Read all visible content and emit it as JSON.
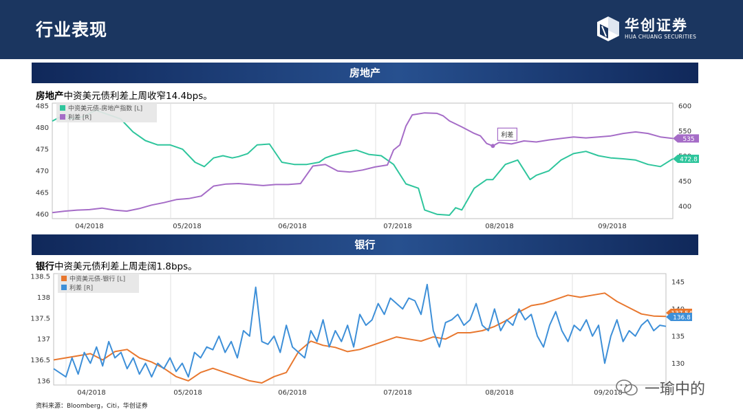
{
  "page": {
    "title": "行业表现"
  },
  "brand": {
    "name_cn": "华创证券",
    "name_en": "HUA CHUANG SECURITIES"
  },
  "sections": [
    {
      "title": "房地产",
      "desc_bold": "房地产",
      "desc_text": "中资美元债利差上周收窄14.4bps。"
    },
    {
      "title": "银行",
      "desc_bold": "银行",
      "desc_text": "中资美元债利差上周走阔1.8bps。"
    }
  ],
  "source": "资料来源：Bloomberg，Citi，华创证券",
  "watermark": "一瑜中的",
  "colors": {
    "header": "#1b3660",
    "green": "#2ec59c",
    "purple": "#a56cc7",
    "orange": "#e8772e",
    "blue": "#3d8fd8"
  },
  "chart_data": [
    {
      "type": "line",
      "title": "房地产",
      "x_labels": [
        "04/2018",
        "05/2018",
        "06/2018",
        "07/2018",
        "08/2018",
        "09/2018"
      ],
      "left_axis": {
        "ticks": [
          460,
          465,
          470,
          475,
          480,
          485
        ],
        "range": [
          459,
          485
        ]
      },
      "right_axis": {
        "ticks": [
          400,
          450,
          500,
          550,
          600
        ],
        "range": [
          375,
          600
        ]
      },
      "annotation": "利差",
      "series": [
        {
          "name": "中资美元债-房地产指数 [L]",
          "axis": "left",
          "color": "#2ec59c",
          "last_label": "472.8",
          "x": [
            0.0,
            0.02,
            0.03,
            0.05,
            0.07,
            0.09,
            0.11,
            0.13,
            0.15,
            0.17,
            0.19,
            0.21,
            0.23,
            0.245,
            0.26,
            0.275,
            0.29,
            0.3,
            0.315,
            0.33,
            0.35,
            0.37,
            0.39,
            0.41,
            0.43,
            0.44,
            0.45,
            0.47,
            0.49,
            0.51,
            0.53,
            0.55,
            0.57,
            0.59,
            0.6,
            0.62,
            0.64,
            0.65,
            0.66,
            0.68,
            0.7,
            0.71,
            0.73,
            0.75,
            0.77,
            0.78,
            0.8,
            0.82,
            0.84,
            0.86,
            0.88,
            0.9,
            0.92,
            0.94,
            0.96,
            0.98,
            1.0
          ],
          "values": [
            481.5,
            483,
            482,
            482.5,
            484,
            483,
            482,
            479,
            477,
            476,
            476,
            475,
            472,
            471,
            473,
            473.5,
            473,
            473.3,
            474,
            476,
            476.2,
            472,
            471.5,
            471.5,
            472,
            473,
            473.5,
            474.3,
            474.8,
            473.8,
            473.5,
            471.5,
            467,
            466,
            461,
            460,
            459.8,
            461.5,
            461,
            466,
            468,
            468,
            471.5,
            472.5,
            468,
            469,
            470,
            472.5,
            474,
            474.5,
            473.5,
            473,
            472.8,
            472.5,
            471.5,
            471,
            472.8
          ]
        },
        {
          "name": "利差 [R]",
          "axis": "right",
          "color": "#a56cc7",
          "last_label": "535",
          "x": [
            0.0,
            0.02,
            0.04,
            0.06,
            0.08,
            0.1,
            0.12,
            0.14,
            0.16,
            0.18,
            0.2,
            0.22,
            0.24,
            0.26,
            0.28,
            0.3,
            0.32,
            0.34,
            0.36,
            0.38,
            0.4,
            0.42,
            0.44,
            0.46,
            0.48,
            0.5,
            0.52,
            0.54,
            0.55,
            0.56,
            0.57,
            0.58,
            0.6,
            0.62,
            0.63,
            0.64,
            0.66,
            0.68,
            0.69,
            0.7,
            0.71,
            0.72,
            0.74,
            0.76,
            0.78,
            0.8,
            0.82,
            0.84,
            0.86,
            0.88,
            0.9,
            0.92,
            0.94,
            0.96,
            0.98,
            1.0
          ],
          "values": [
            387,
            390,
            392,
            393,
            396,
            392,
            390,
            395,
            402,
            407,
            413,
            415,
            420,
            440,
            444,
            445,
            443,
            441,
            443,
            443,
            445,
            480,
            483,
            470,
            468,
            472,
            478,
            482,
            512,
            522,
            560,
            582,
            586,
            585,
            580,
            570,
            558,
            545,
            540,
            525,
            520,
            527,
            524,
            530,
            528,
            532,
            535,
            538,
            536,
            538,
            540,
            545,
            548,
            545,
            538,
            535
          ]
        }
      ]
    },
    {
      "type": "line",
      "title": "银行",
      "x_labels": [
        "04/2018",
        "05/2018",
        "06/2018",
        "07/2018",
        "08/2018",
        "09/2018"
      ],
      "left_axis": {
        "ticks": [
          136,
          136.5,
          137,
          137.5,
          138,
          138.5
        ],
        "range": [
          135.9,
          138.5
        ]
      },
      "right_axis": {
        "ticks": [
          130,
          135,
          140,
          145
        ],
        "range": [
          126,
          146
        ]
      },
      "series": [
        {
          "name": "中资美元债-银行 [L]",
          "axis": "left",
          "color": "#e8772e",
          "last_label": "137.54",
          "x": [
            0.0,
            0.02,
            0.04,
            0.06,
            0.08,
            0.1,
            0.12,
            0.14,
            0.16,
            0.18,
            0.2,
            0.22,
            0.24,
            0.26,
            0.28,
            0.3,
            0.32,
            0.34,
            0.36,
            0.38,
            0.4,
            0.42,
            0.44,
            0.46,
            0.48,
            0.5,
            0.52,
            0.54,
            0.56,
            0.58,
            0.6,
            0.62,
            0.64,
            0.66,
            0.68,
            0.7,
            0.72,
            0.74,
            0.76,
            0.78,
            0.8,
            0.82,
            0.84,
            0.86,
            0.88,
            0.9,
            0.92,
            0.94,
            0.96,
            0.98,
            1.0
          ],
          "values": [
            136.5,
            136.55,
            136.6,
            136.65,
            136.5,
            136.7,
            136.75,
            136.55,
            136.45,
            136.3,
            136.1,
            136.0,
            136.2,
            136.3,
            136.2,
            136.1,
            136.0,
            135.95,
            136.1,
            136.2,
            136.7,
            136.95,
            136.85,
            136.8,
            136.7,
            136.75,
            136.85,
            136.95,
            137.05,
            137.0,
            136.95,
            137.05,
            137.0,
            137.15,
            137.15,
            137.2,
            137.3,
            137.45,
            137.65,
            137.8,
            137.85,
            137.95,
            138.05,
            138.0,
            138.05,
            138.1,
            137.9,
            137.75,
            137.6,
            137.55,
            137.54
          ]
        },
        {
          "name": "利差 [R]",
          "axis": "right",
          "color": "#3d8fd8",
          "last_label": "136.8",
          "x": [
            0.0,
            0.02,
            0.03,
            0.04,
            0.05,
            0.06,
            0.07,
            0.08,
            0.09,
            0.1,
            0.11,
            0.12,
            0.13,
            0.14,
            0.15,
            0.16,
            0.17,
            0.18,
            0.19,
            0.2,
            0.21,
            0.22,
            0.23,
            0.24,
            0.25,
            0.26,
            0.27,
            0.28,
            0.29,
            0.3,
            0.31,
            0.32,
            0.33,
            0.34,
            0.35,
            0.36,
            0.37,
            0.38,
            0.39,
            0.4,
            0.41,
            0.42,
            0.43,
            0.44,
            0.45,
            0.46,
            0.47,
            0.48,
            0.49,
            0.5,
            0.51,
            0.52,
            0.53,
            0.54,
            0.55,
            0.56,
            0.57,
            0.58,
            0.59,
            0.6,
            0.61,
            0.62,
            0.63,
            0.64,
            0.65,
            0.66,
            0.67,
            0.68,
            0.69,
            0.7,
            0.71,
            0.72,
            0.73,
            0.74,
            0.75,
            0.76,
            0.77,
            0.78,
            0.79,
            0.8,
            0.81,
            0.82,
            0.83,
            0.84,
            0.85,
            0.86,
            0.87,
            0.88,
            0.89,
            0.9,
            0.91,
            0.92,
            0.93,
            0.94,
            0.95,
            0.96,
            0.97,
            0.98,
            0.99,
            1.0
          ],
          "values": [
            129,
            127.5,
            131,
            128,
            132,
            130,
            133,
            129.5,
            134,
            131,
            132,
            129,
            131,
            128,
            130,
            127.5,
            130,
            129,
            131,
            128.5,
            130,
            127.5,
            132,
            131,
            133,
            132.5,
            135,
            132,
            134,
            131,
            136,
            135,
            144,
            134,
            133.5,
            135,
            132,
            137,
            133,
            132,
            131,
            136,
            134,
            138,
            133,
            136,
            134,
            137,
            133,
            139,
            137,
            138,
            141,
            139,
            142,
            141,
            140,
            142,
            141.5,
            139,
            144.5,
            136,
            133,
            137.5,
            138,
            139,
            137,
            138,
            141,
            137,
            136,
            140,
            136,
            138,
            137,
            140,
            138,
            139,
            135,
            133,
            137,
            139.5,
            136,
            134,
            137,
            136,
            138,
            135,
            137,
            130,
            135,
            138,
            134,
            136,
            135,
            137,
            138,
            136,
            137,
            136.8
          ]
        }
      ]
    }
  ]
}
